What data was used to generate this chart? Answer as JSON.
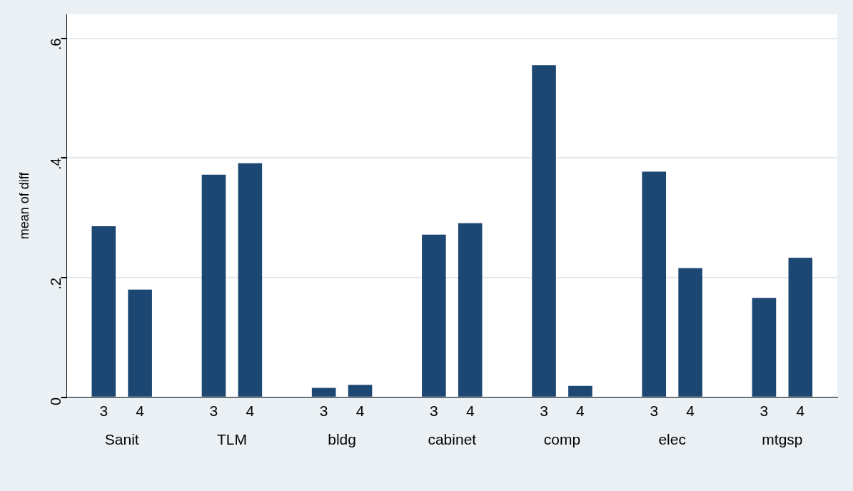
{
  "chart_data": {
    "type": "bar",
    "ylabel": "mean of diff",
    "categories": [
      "Sanit",
      "TLM",
      "bldg",
      "cabinet",
      "comp",
      "elec",
      "mtgsp"
    ],
    "series": [
      {
        "name": "3",
        "color": "#1c4773",
        "values": [
          0.286,
          0.372,
          0.016,
          0.272,
          0.555,
          0.377,
          0.166
        ]
      },
      {
        "name": "4",
        "color": "#1c4773",
        "values": [
          0.18,
          0.391,
          0.021,
          0.291,
          0.019,
          0.216,
          0.233
        ]
      }
    ],
    "ylim": [
      0,
      0.64
    ],
    "yticks": [
      0,
      {
        "value": 0.2,
        "label": ".2"
      },
      {
        "value": 0.4,
        "label": ".4"
      },
      {
        "value": 0.6,
        "label": ".6"
      }
    ],
    "grid": "y",
    "legend": false
  }
}
